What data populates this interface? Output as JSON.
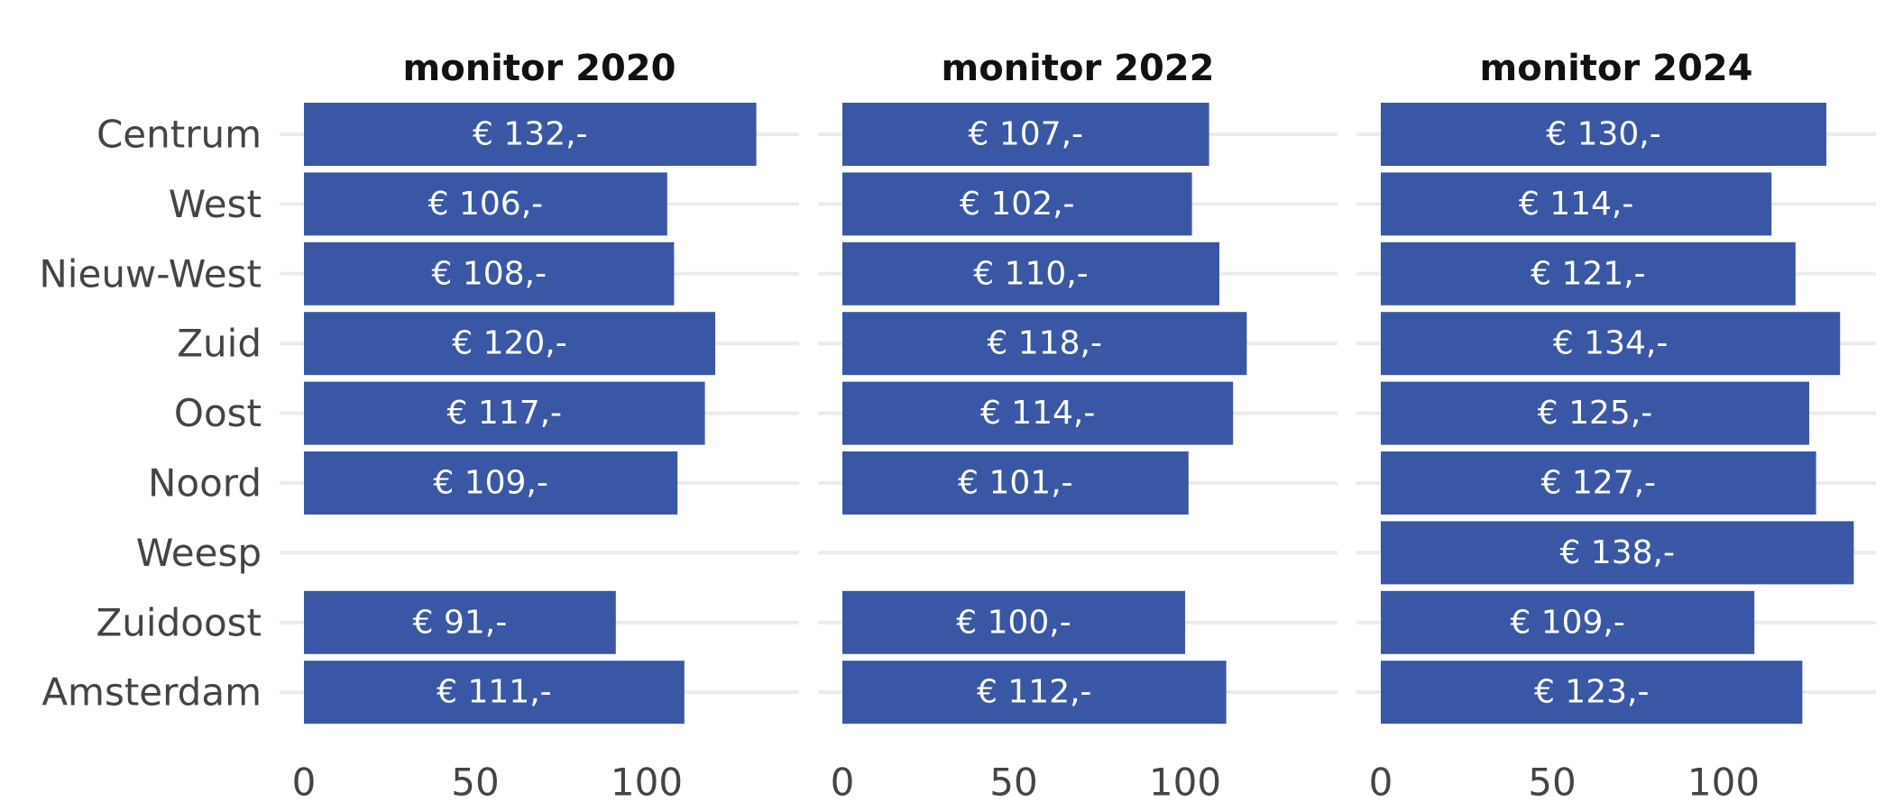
{
  "chart_data": {
    "type": "bar",
    "orientation": "horizontal",
    "bar_color": "#3a57a5",
    "categories": [
      "Centrum",
      "West",
      "Nieuw-West",
      "Zuid",
      "Oost",
      "Noord",
      "Weesp",
      "Zuidoost",
      "Amsterdam"
    ],
    "xlim": [
      0,
      140
    ],
    "x_ticks": [
      0,
      50,
      100
    ],
    "grid": "horizontal",
    "panels": [
      {
        "title": "monitor 2020",
        "values": [
          132,
          106,
          108,
          120,
          117,
          109,
          null,
          91,
          111
        ],
        "labels": [
          "€ 132,-",
          "€ 106,-",
          "€ 108,-",
          "€ 120,-",
          "€ 117,-",
          "€ 109,-",
          "",
          "€ 91,-",
          "€ 111,-"
        ]
      },
      {
        "title": "monitor 2022",
        "values": [
          107,
          102,
          110,
          118,
          114,
          101,
          null,
          100,
          112
        ],
        "labels": [
          "€ 107,-",
          "€ 102,-",
          "€ 110,-",
          "€ 118,-",
          "€ 114,-",
          "€ 101,-",
          "",
          "€ 100,-",
          "€ 112,-"
        ]
      },
      {
        "title": "monitor 2024",
        "values": [
          130,
          114,
          121,
          134,
          125,
          127,
          138,
          109,
          123
        ],
        "labels": [
          "€ 130,-",
          "€ 114,-",
          "€ 121,-",
          "€ 134,-",
          "€ 125,-",
          "€ 127,-",
          "€ 138,-",
          "€ 109,-",
          "€ 123,-"
        ]
      }
    ]
  }
}
